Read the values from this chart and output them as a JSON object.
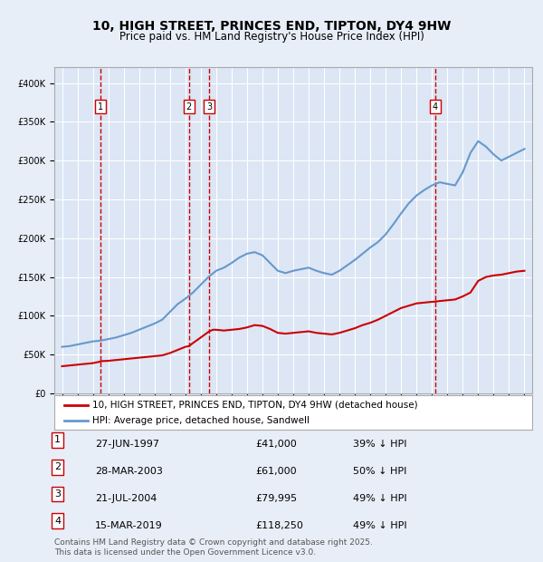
{
  "title": "10, HIGH STREET, PRINCES END, TIPTON, DY4 9HW",
  "subtitle": "Price paid vs. HM Land Registry's House Price Index (HPI)",
  "footnote": "Contains HM Land Registry data © Crown copyright and database right 2025.\nThis data is licensed under the Open Government Licence v3.0.",
  "legend_line1": "10, HIGH STREET, PRINCES END, TIPTON, DY4 9HW (detached house)",
  "legend_line2": "HPI: Average price, detached house, Sandwell",
  "sales": [
    {
      "label": "1",
      "date": "27-JUN-1997",
      "price": 41000,
      "pct": "39% ↓ HPI",
      "year": 1997.49
    },
    {
      "label": "2",
      "date": "28-MAR-2003",
      "price": 61000,
      "pct": "50% ↓ HPI",
      "year": 2003.24
    },
    {
      "label": "3",
      "date": "21-JUL-2004",
      "price": 79995,
      "pct": "49% ↓ HPI",
      "year": 2004.55
    },
    {
      "label": "4",
      "date": "15-MAR-2019",
      "price": 118250,
      "pct": "49% ↓ HPI",
      "year": 2019.21
    }
  ],
  "hpi_line": {
    "years": [
      1995,
      1995.5,
      1996,
      1996.5,
      1997,
      1997.5,
      1998,
      1998.5,
      1999,
      1999.5,
      2000,
      2000.5,
      2001,
      2001.5,
      2002,
      2002.5,
      2003,
      2003.5,
      2004,
      2004.5,
      2005,
      2005.5,
      2006,
      2006.5,
      2007,
      2007.5,
      2008,
      2008.5,
      2009,
      2009.5,
      2010,
      2010.5,
      2011,
      2011.5,
      2012,
      2012.5,
      2013,
      2013.5,
      2014,
      2014.5,
      2015,
      2015.5,
      2016,
      2016.5,
      2017,
      2017.5,
      2018,
      2018.5,
      2019,
      2019.5,
      2020,
      2020.5,
      2021,
      2021.5,
      2022,
      2022.5,
      2023,
      2023.5,
      2024,
      2024.5,
      2025
    ],
    "values": [
      60000,
      61000,
      63000,
      65000,
      67000,
      68000,
      70000,
      72000,
      75000,
      78000,
      82000,
      86000,
      90000,
      95000,
      105000,
      115000,
      122000,
      130000,
      140000,
      150000,
      158000,
      162000,
      168000,
      175000,
      180000,
      182000,
      178000,
      168000,
      158000,
      155000,
      158000,
      160000,
      162000,
      158000,
      155000,
      153000,
      158000,
      165000,
      172000,
      180000,
      188000,
      195000,
      205000,
      218000,
      232000,
      245000,
      255000,
      262000,
      268000,
      272000,
      270000,
      268000,
      285000,
      310000,
      325000,
      318000,
      308000,
      300000,
      305000,
      310000,
      315000
    ]
  },
  "price_line": {
    "years": [
      1995,
      1995.5,
      1996,
      1996.5,
      1997,
      1997.49,
      1997.5,
      1998,
      1998.5,
      1999,
      1999.5,
      2000,
      2000.5,
      2001,
      2001.5,
      2002,
      2002.5,
      2003,
      2003.24,
      2003.5,
      2004,
      2004.55,
      2004.8,
      2005,
      2005.5,
      2006,
      2006.5,
      2007,
      2007.5,
      2008,
      2008.5,
      2009,
      2009.5,
      2010,
      2010.5,
      2011,
      2011.5,
      2012,
      2012.5,
      2013,
      2013.5,
      2014,
      2014.5,
      2015,
      2015.5,
      2016,
      2016.5,
      2017,
      2017.5,
      2018,
      2018.5,
      2019,
      2019.21,
      2019.5,
      2020,
      2020.5,
      2021,
      2021.5,
      2022,
      2022.5,
      2023,
      2023.5,
      2024,
      2024.5,
      2025
    ],
    "values": [
      35000,
      36000,
      37000,
      38000,
      39000,
      41000,
      41500,
      42000,
      43000,
      44000,
      45000,
      46000,
      47000,
      48000,
      49000,
      52000,
      56000,
      60000,
      61000,
      65000,
      72000,
      79995,
      82000,
      82000,
      81000,
      82000,
      83000,
      85000,
      88000,
      87000,
      83000,
      78000,
      77000,
      78000,
      79000,
      80000,
      78000,
      77000,
      76000,
      78000,
      81000,
      84000,
      88000,
      91000,
      95000,
      100000,
      105000,
      110000,
      113000,
      116000,
      117000,
      118000,
      118250,
      119000,
      120000,
      121000,
      125000,
      130000,
      145000,
      150000,
      152000,
      153000,
      155000,
      157000,
      158000
    ]
  },
  "ylim": [
    0,
    420000
  ],
  "xlim": [
    1994.5,
    2025.5
  ],
  "yticks": [
    0,
    50000,
    100000,
    150000,
    200000,
    250000,
    300000,
    350000,
    400000
  ],
  "xticks": [
    1995,
    1996,
    1997,
    1998,
    1999,
    2000,
    2001,
    2002,
    2003,
    2004,
    2005,
    2006,
    2007,
    2008,
    2009,
    2010,
    2011,
    2012,
    2013,
    2014,
    2015,
    2016,
    2017,
    2018,
    2019,
    2020,
    2021,
    2022,
    2023,
    2024,
    2025
  ],
  "background_color": "#e8eef8",
  "plot_bg": "#dce6f5",
  "grid_color": "#ffffff",
  "hpi_color": "#6699cc",
  "price_color": "#cc0000",
  "vline_color": "#cc0000",
  "label_box_color": "#ffffff",
  "label_box_edge": "#cc0000"
}
